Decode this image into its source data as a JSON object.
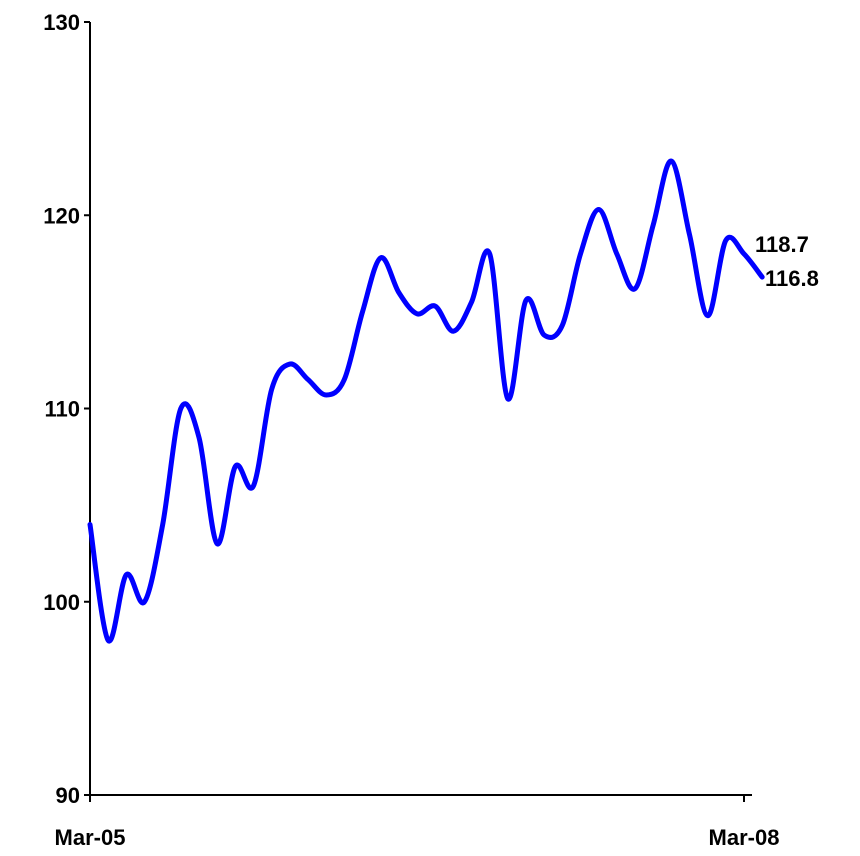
{
  "chart_data": {
    "type": "line",
    "title": "",
    "xlabel": "",
    "ylabel": "",
    "ylim": [
      90,
      130
    ],
    "y_ticks": [
      "90",
      "100",
      "110",
      "120",
      "130"
    ],
    "x_ticks": [
      "Mar-05",
      "Mar-08"
    ],
    "grid": false,
    "line_color": "#0000FF",
    "end_labels": [
      "118.7",
      "116.8"
    ],
    "series": [
      {
        "x": [
          "2005-03",
          "2005-04",
          "2005-05",
          "2005-06",
          "2005-07",
          "2005-08",
          "2005-09",
          "2005-10",
          "2005-11",
          "2005-12",
          "2006-01",
          "2006-02",
          "2006-03",
          "2006-04",
          "2006-05",
          "2006-06",
          "2006-07",
          "2006-08",
          "2006-09",
          "2006-10",
          "2006-11",
          "2006-12",
          "2007-01",
          "2007-02",
          "2007-03",
          "2007-04",
          "2007-05",
          "2007-06",
          "2007-07",
          "2007-08",
          "2007-09",
          "2007-10",
          "2007-11",
          "2007-12",
          "2008-01",
          "2008-02",
          "2008-03",
          "2008-04"
        ],
        "values": [
          104.0,
          98.0,
          101.4,
          100.0,
          104.0,
          110.0,
          108.5,
          103.0,
          107.0,
          106.0,
          111.0,
          112.3,
          111.5,
          110.7,
          111.5,
          115.0,
          117.8,
          116.0,
          114.9,
          115.3,
          114.0,
          115.5,
          118.0,
          110.5,
          115.6,
          113.8,
          114.3,
          118.0,
          120.3,
          118.0,
          116.2,
          119.5,
          122.8,
          119.0,
          114.8,
          118.7,
          118.0,
          116.8
        ]
      }
    ]
  }
}
